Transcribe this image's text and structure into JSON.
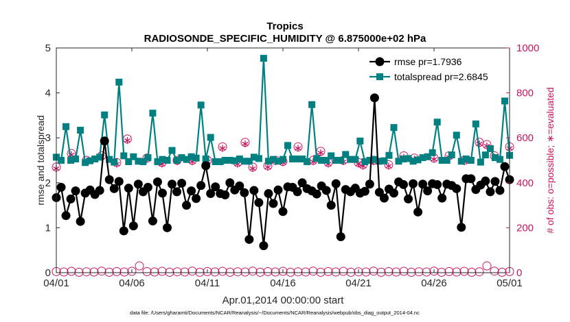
{
  "chart_data": {
    "type": "line",
    "title": "Tropics",
    "subtitle": "RADIOSONDE_SPECIFIC_HUMIDITY @ 6.875000e+02 hPa",
    "xlabel": "Apr.01,2014 00:00:00 start",
    "ylabel_left": "rmse and totalspread",
    "ylabel_right": "# of obs: o=possible; ∗=evaluated",
    "footer": "data file: /Users/gharamti/Documents/NCAR/Reanalysis/~/Documents/NCAR/Reanalysis/webpub/obs_diag_output_2014-04.nc",
    "xlim": [
      0,
      30
    ],
    "ylim_left": [
      0,
      5
    ],
    "ylim_right": [
      0,
      1000
    ],
    "x_ticks": [
      0,
      5,
      10,
      15,
      20,
      25,
      30
    ],
    "x_tick_labels": [
      "04/01",
      "04/06",
      "04/11",
      "04/16",
      "04/21",
      "04/26",
      "05/01"
    ],
    "y_ticks_left": [
      0,
      1,
      2,
      3,
      4,
      5
    ],
    "y_ticks_right": [
      0,
      200,
      400,
      600,
      800,
      1000
    ],
    "colors": {
      "rmse": "#000000",
      "spread": "#008080",
      "obs": "#c8155f",
      "axis": "#262626"
    },
    "series": [
      {
        "name": "rmse",
        "legend": "rmse pr=1.7936",
        "axis": "left",
        "values": [
          1.67,
          1.9,
          1.27,
          1.64,
          1.82,
          1.14,
          1.77,
          1.84,
          1.74,
          1.83,
          2.93,
          2.07,
          1.87,
          2.03,
          0.93,
          1.88,
          1.04,
          1.97,
          1.8,
          1.9,
          1.15,
          2.02,
          1.77,
          1.0,
          1.97,
          1.8,
          1.99,
          1.5,
          1.82,
          1.65,
          1.94,
          2.38,
          1.76,
          1.91,
          1.76,
          1.73,
          2.0,
          1.84,
          1.93,
          1.78,
          0.74,
          1.83,
          1.56,
          0.6,
          1.76,
          1.54,
          1.84,
          1.36,
          1.91,
          1.9,
          1.8,
          2.0,
          1.87,
          1.82,
          1.75,
          1.93,
          1.83,
          1.5,
          1.98,
          0.8,
          1.85,
          1.8,
          1.88,
          1.77,
          1.81,
          1.97,
          3.89,
          1.79,
          1.66,
          1.86,
          1.77,
          2.02,
          1.96,
          1.64,
          1.98,
          1.35,
          1.97,
          1.82,
          1.98,
          1.96,
          1.66,
          1.97,
          1.94,
          1.87,
          1.01,
          2.09,
          2.09,
          1.85,
          1.95,
          2.04,
          1.8,
          2.03,
          1.83,
          2.36,
          2.07
        ]
      },
      {
        "name": "totalspread",
        "legend": "totalspread pr=2.6845",
        "axis": "left",
        "values": [
          2.57,
          2.5,
          3.25,
          2.5,
          2.53,
          3.17,
          2.45,
          2.49,
          2.53,
          2.57,
          3.51,
          2.52,
          2.46,
          4.24,
          2.6,
          2.47,
          2.58,
          2.48,
          2.47,
          2.56,
          3.55,
          2.47,
          2.52,
          2.5,
          2.72,
          2.5,
          2.56,
          2.52,
          2.58,
          2.55,
          3.73,
          2.53,
          3.01,
          2.47,
          2.47,
          2.5,
          2.5,
          2.49,
          2.53,
          2.48,
          2.48,
          2.57,
          2.54,
          4.77,
          2.48,
          2.52,
          2.48,
          2.52,
          2.83,
          2.53,
          2.53,
          2.53,
          2.47,
          3.74,
          2.54,
          2.5,
          2.5,
          2.6,
          2.5,
          2.5,
          2.63,
          2.52,
          2.52,
          2.93,
          2.47,
          2.5,
          2.52,
          2.48,
          2.49,
          2.61,
          3.23,
          2.48,
          2.53,
          2.54,
          2.48,
          2.51,
          2.56,
          2.58,
          2.67,
          3.35,
          2.5,
          2.5,
          2.62,
          3.06,
          2.48,
          2.53,
          2.5,
          3.31,
          2.46,
          2.62,
          2.76,
          2.56,
          2.52,
          3.82,
          2.61
        ]
      }
    ],
    "obs_series": [
      {
        "name": "possible",
        "marker": "o",
        "axis": "right",
        "x": [
          0.0,
          1.0,
          2.0,
          3.0,
          4.0,
          4.7,
          6.0,
          7.0,
          8.0,
          9.0,
          10.0,
          11.0,
          12.0,
          12.5,
          13.0,
          14.0,
          14.5,
          15.0,
          16.0,
          17.0,
          17.5,
          18.0,
          19.0,
          20.0,
          20.3,
          21.0,
          22.0,
          23.0,
          23.7,
          25.0,
          26.0,
          27.0,
          28.0,
          28.5,
          29.0,
          30.0
        ],
        "values": [
          470,
          530,
          500,
          520,
          490,
          595,
          510,
          490,
          500,
          500,
          500,
          560,
          490,
          580,
          470,
          475,
          500,
          495,
          560,
          500,
          540,
          490,
          500,
          490,
          480,
          500,
          480,
          520,
          510,
          510,
          520,
          500,
          580,
          570,
          520,
          560
        ]
      },
      {
        "name": "evaluated",
        "marker": "*",
        "axis": "right",
        "x": [
          0.0,
          1.0,
          2.0,
          3.0,
          4.0,
          4.7,
          6.0,
          7.0,
          8.0,
          9.0,
          10.0,
          11.0,
          12.0,
          12.5,
          13.0,
          14.0,
          14.5,
          15.0,
          16.0,
          17.0,
          17.5,
          18.0,
          19.0,
          20.0,
          20.3,
          21.0,
          22.0,
          23.0,
          23.7,
          25.0,
          26.0,
          27.0,
          28.0,
          28.5,
          29.0,
          30.0
        ],
        "values": [
          470,
          530,
          500,
          520,
          490,
          595,
          510,
          490,
          500,
          500,
          500,
          560,
          490,
          580,
          470,
          475,
          500,
          495,
          560,
          500,
          540,
          490,
          500,
          490,
          480,
          500,
          480,
          520,
          510,
          510,
          520,
          500,
          580,
          570,
          520,
          560
        ]
      },
      {
        "name": "possible-bottom",
        "marker": "o",
        "axis": "right",
        "x": [
          0.0,
          0.5,
          1.0,
          1.5,
          2.0,
          2.5,
          3.0,
          3.5,
          4.0,
          4.5,
          5.0,
          5.5,
          6.0,
          6.5,
          7.0,
          7.5,
          8.0,
          8.5,
          9.0,
          9.5,
          10.0,
          10.5,
          11.0,
          11.5,
          12.0,
          12.5,
          13.0,
          13.5,
          14.0,
          14.5,
          15.0,
          15.5,
          16.0,
          16.5,
          17.0,
          17.5,
          18.0,
          18.5,
          19.0,
          19.5,
          20.0,
          20.5,
          21.0,
          21.5,
          22.0,
          22.5,
          23.0,
          23.5,
          24.0,
          24.5,
          25.0,
          25.5,
          26.0,
          26.5,
          27.0,
          27.5,
          28.0,
          28.5,
          29.0,
          29.5,
          30.0
        ],
        "values": [
          5,
          3,
          6,
          2,
          4,
          3,
          7,
          2,
          5,
          3,
          6,
          30,
          5,
          3,
          6,
          2,
          4,
          3,
          7,
          2,
          5,
          3,
          6,
          2,
          4,
          3,
          7,
          2,
          5,
          3,
          6,
          2,
          4,
          3,
          7,
          2,
          5,
          3,
          6,
          2,
          4,
          3,
          7,
          2,
          5,
          3,
          6,
          2,
          4,
          3,
          7,
          2,
          5,
          3,
          6,
          2,
          4,
          30,
          7,
          2,
          5
        ]
      }
    ]
  }
}
